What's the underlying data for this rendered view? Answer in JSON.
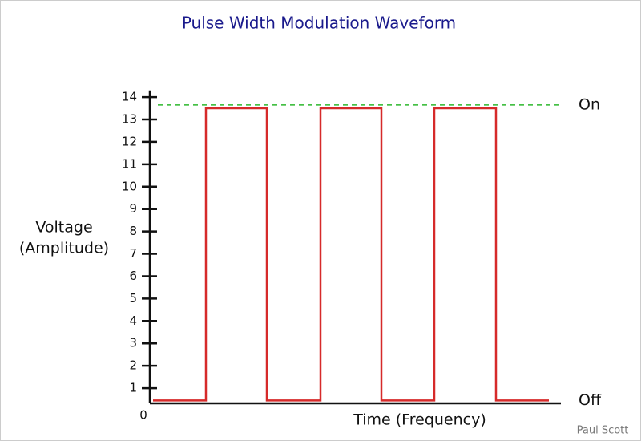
{
  "chart_data": {
    "type": "line",
    "title": "Pulse Width Modulation Waveform",
    "y_label": [
      "Voltage",
      "(Amplitude)"
    ],
    "x_label": "Time (Frequency)",
    "credit": "Paul Scott",
    "x": [
      4,
      70,
      70,
      146,
      146,
      213,
      213,
      289,
      289,
      355,
      355,
      432,
      432,
      498
    ],
    "series": [
      {
        "color": "#d62a2a",
        "values": [
          0.45,
          0.45,
          13.5,
          13.5,
          0.45,
          0.45,
          13.5,
          13.5,
          0.45,
          0.45,
          13.5,
          13.5,
          0.45,
          0.45
        ]
      }
    ],
    "xlim": [
      0,
      513
    ],
    "ylim": [
      0,
      14.3
    ],
    "yticks": [
      0,
      1,
      2,
      3,
      4,
      5,
      6,
      7,
      8,
      9,
      10,
      11,
      12,
      13,
      14
    ],
    "reference_lines": [
      {
        "label": "On",
        "value": 13.65,
        "dashed": true,
        "color": "#2db82d"
      },
      {
        "label": "Off",
        "value": 0.45,
        "dashed": false,
        "color": "#2db82d"
      }
    ]
  }
}
